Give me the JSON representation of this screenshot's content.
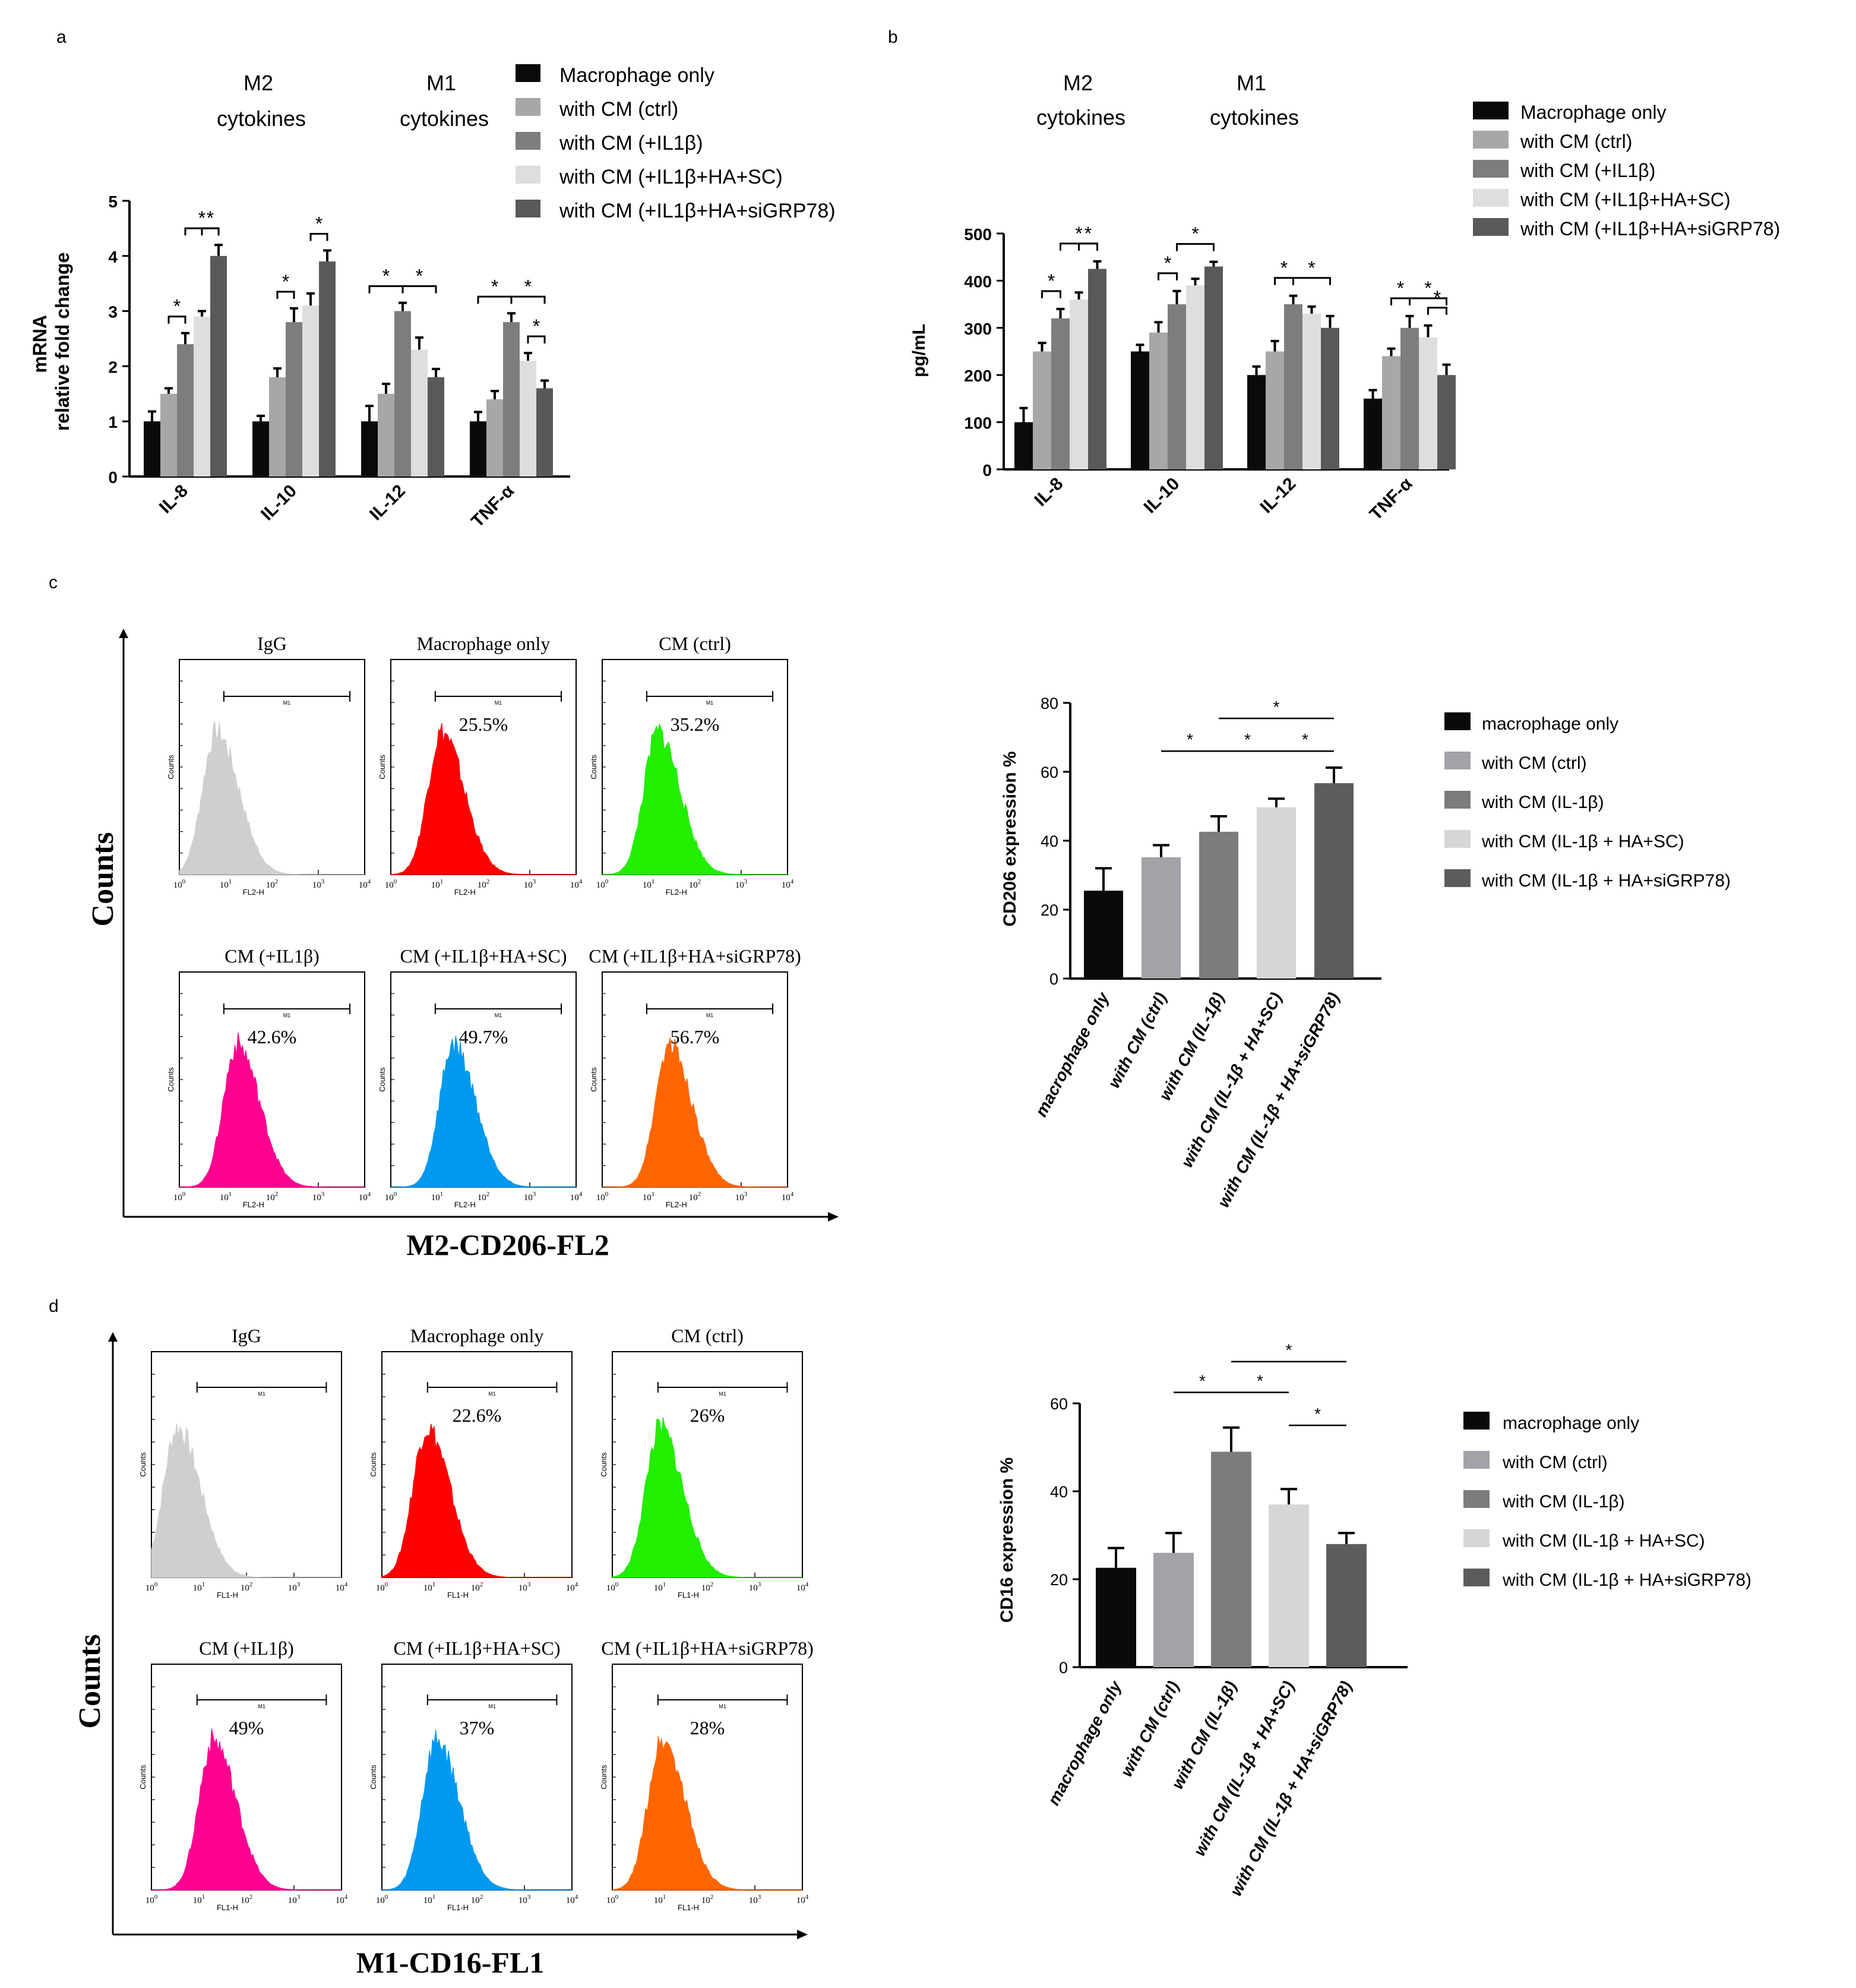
{
  "panels": {
    "a": {
      "letter": "a",
      "group_labels": [
        [
          "M2",
          "cytokines"
        ],
        [
          "M1",
          "cytokines"
        ]
      ],
      "ylabel": [
        "mRNA",
        "relative fold change"
      ],
      "legend": [
        "Macrophage only",
        "with CM (ctrl)",
        "with CM (+IL1β)",
        "with CM (+IL1β+HA+SC)",
        "with CM (+IL1β+HA+siGRP78)"
      ],
      "star": "*"
    },
    "b": {
      "letter": "b",
      "group_labels": [
        [
          "M2",
          "cytokines"
        ],
        [
          "M1",
          "cytokines"
        ]
      ],
      "ylabel": "pg/mL",
      "legend": [
        "Macrophage only",
        "with CM (ctrl)",
        "with CM (+IL1β)",
        "with CM (+IL1β+HA+SC)",
        "with CM (+IL1β+HA+siGRP78)"
      ],
      "star": "*"
    },
    "c": {
      "letter": "c",
      "yaxis": "Counts",
      "xaxis": "M2-CD206-FL2",
      "histograms": [
        {
          "title": "IgG",
          "value": "",
          "color": "#cfcfcf",
          "xlabel": "FL2-H",
          "ylabel": "Counts",
          "gate": "M1",
          "peak": 0.8
        },
        {
          "title": "Macrophage only",
          "value": "25.5%",
          "color": "#ff0000",
          "xlabel": "FL2-H",
          "ylabel": "Counts",
          "gate": "M1",
          "peak": 1.1
        },
        {
          "title": "CM (ctrl)",
          "value": "35.2%",
          "color": "#22ee00",
          "xlabel": "FL2-H",
          "ylabel": "Counts",
          "gate": "M1",
          "peak": 1.2
        },
        {
          "title": "CM (+IL1β)",
          "value": "42.6%",
          "color": "#ff0090",
          "xlabel": "FL2-H",
          "ylabel": "Counts",
          "gate": "M1",
          "peak": 1.25
        },
        {
          "title": "CM (+IL1β+HA+SC)",
          "value": "49.7%",
          "color": "#0099ee",
          "xlabel": "FL2-H",
          "ylabel": "Counts",
          "gate": "M1",
          "peak": 1.35
        },
        {
          "title": "CM (+IL1β+HA+siGRP78)",
          "value": "56.7%",
          "color": "#ff6600",
          "xlabel": "FL2-H",
          "ylabel": "Counts",
          "gate": "M1",
          "peak": 1.45
        }
      ],
      "bar_ylabel": "CD206 expression %",
      "legend": [
        "macrophage only",
        "with CM (ctrl)",
        "with CM (IL-1β)",
        "with CM (IL-1β + HA+SC)",
        "with CM (IL-1β + HA+siGRP78)"
      ],
      "categories": [
        "macrophage only",
        "with CM (ctrl)",
        "with CM (IL-1β)",
        "with CM (IL-1β + HA+SC)",
        "with CM (IL-1β + HA+siGRP78)"
      ],
      "star": "*"
    },
    "d": {
      "letter": "d",
      "yaxis": "Counts",
      "xaxis": "M1-CD16-FL1",
      "histograms": [
        {
          "title": "IgG",
          "value": "",
          "color": "#cfcfcf",
          "xlabel": "FL1-H",
          "ylabel": "Counts",
          "gate": "M1",
          "peak": 0.55
        },
        {
          "title": "Macrophage only",
          "value": "22.6%",
          "color": "#ff0000",
          "xlabel": "FL1-H",
          "ylabel": "Counts",
          "gate": "M1",
          "peak": 0.95
        },
        {
          "title": "CM (ctrl)",
          "value": "26%",
          "color": "#22ee00",
          "xlabel": "FL1-H",
          "ylabel": "Counts",
          "gate": "M1",
          "peak": 1.0
        },
        {
          "title": "CM (+IL1β)",
          "value": "49%",
          "color": "#ff0090",
          "xlabel": "FL1-H",
          "ylabel": "Counts",
          "gate": "M1",
          "peak": 1.3
        },
        {
          "title": "CM (+IL1β+HA+SC)",
          "value": "37%",
          "color": "#0099ee",
          "xlabel": "FL1-H",
          "ylabel": "Counts",
          "gate": "M1",
          "peak": 1.15
        },
        {
          "title": "CM (+IL1β+HA+siGRP78)",
          "value": "28%",
          "color": "#ff6600",
          "xlabel": "FL1-H",
          "ylabel": "Counts",
          "gate": "M1",
          "peak": 1.05
        }
      ],
      "bar_ylabel": "CD16 expression %",
      "legend": [
        "macrophage only",
        "with CM (ctrl)",
        "with CM (IL-1β)",
        "with CM (IL-1β + HA+SC)",
        "with CM (IL-1β + HA+siGRP78)"
      ],
      "categories": [
        "macrophage only",
        "with CM (ctrl)",
        "with CM (IL-1β)",
        "with CM (IL-1β + HA+SC)",
        "with CM (IL-1β + HA+siGRP78)"
      ],
      "star": "*"
    }
  },
  "colors": {
    "panel_ab": [
      "#0a0a0a",
      "#a7a7a7",
      "#7d7d7d",
      "#dedede",
      "#595959"
    ],
    "panel_cd": [
      "#0a0a0a",
      "#a2a2a8",
      "#7c7c7c",
      "#d6d6d6",
      "#5c5c5c"
    ]
  },
  "chart_data": [
    {
      "type": "bar",
      "panel": "a",
      "ylabel": "mRNA relative fold change",
      "categories": [
        "IL-8",
        "IL-10",
        "IL-12",
        "TNF-α"
      ],
      "yticks": [
        0,
        1,
        2,
        3,
        4,
        5
      ],
      "ylim": [
        0,
        5
      ],
      "series": [
        {
          "name": "Macrophage only",
          "values": [
            1.0,
            1.0,
            1.0,
            1.0
          ],
          "errors": [
            0.18,
            0.1,
            0.28,
            0.17
          ]
        },
        {
          "name": "with CM (ctrl)",
          "values": [
            1.5,
            1.8,
            1.5,
            1.4
          ],
          "errors": [
            0.1,
            0.16,
            0.18,
            0.15
          ]
        },
        {
          "name": "with CM (+IL1β)",
          "values": [
            2.4,
            2.8,
            3.0,
            2.8
          ],
          "errors": [
            0.2,
            0.25,
            0.15,
            0.16
          ]
        },
        {
          "name": "with CM (+IL1β+HA+SC)",
          "values": [
            2.9,
            3.1,
            2.3,
            2.1
          ],
          "errors": [
            0.1,
            0.22,
            0.22,
            0.14
          ]
        },
        {
          "name": "with CM (+IL1β+HA+siGRP78)",
          "values": [
            4.0,
            3.9,
            1.8,
            1.6
          ],
          "errors": [
            0.2,
            0.2,
            0.15,
            0.14
          ]
        }
      ],
      "significance": [
        [
          0,
          1,
          2
        ],
        [
          0,
          2,
          4
        ],
        [
          0,
          3,
          4
        ],
        [
          1,
          1,
          2
        ],
        [
          1,
          3,
          4
        ],
        [
          2,
          0,
          2
        ],
        [
          2,
          2,
          4
        ],
        [
          3,
          0,
          2
        ],
        [
          3,
          2,
          4
        ],
        [
          3,
          3,
          4
        ]
      ]
    },
    {
      "type": "bar",
      "panel": "b",
      "ylabel": "pg/mL",
      "categories": [
        "IL-8",
        "IL-10",
        "IL-12",
        "TNF-α"
      ],
      "yticks": [
        0,
        100,
        200,
        300,
        400,
        500
      ],
      "ylim": [
        0,
        500
      ],
      "series": [
        {
          "name": "Macrophage only",
          "values": [
            100,
            250,
            200,
            150
          ],
          "errors": [
            30,
            14,
            18,
            18
          ]
        },
        {
          "name": "with CM (ctrl)",
          "values": [
            250,
            290,
            250,
            240
          ],
          "errors": [
            18,
            22,
            22,
            16
          ]
        },
        {
          "name": "with CM (+IL1β)",
          "values": [
            320,
            350,
            350,
            300
          ],
          "errors": [
            20,
            28,
            18,
            25
          ]
        },
        {
          "name": "with CM (+IL1β+HA+SC)",
          "values": [
            360,
            390,
            330,
            280
          ],
          "errors": [
            15,
            14,
            15,
            25
          ]
        },
        {
          "name": "with CM (+IL1β+HA+siGRP78)",
          "values": [
            425,
            430,
            300,
            200
          ],
          "errors": [
            16,
            10,
            25,
            22
          ]
        }
      ],
      "significance": [
        [
          0,
          1,
          2
        ],
        [
          0,
          2,
          4
        ],
        [
          0,
          3,
          4
        ],
        [
          1,
          1,
          2
        ],
        [
          1,
          2,
          4
        ],
        [
          2,
          1,
          2
        ],
        [
          2,
          2,
          4
        ],
        [
          3,
          1,
          2
        ],
        [
          3,
          2,
          4
        ],
        [
          3,
          3,
          4
        ]
      ]
    },
    {
      "type": "bar",
      "panel": "c",
      "ylabel": "CD206 expression %",
      "categories": [
        "macrophage only",
        "with CM (ctrl)",
        "with CM (IL-1β)",
        "with CM (IL-1β + HA+SC)",
        "with CM (IL-1β + HA+siGRP78)"
      ],
      "values": [
        25.5,
        35.2,
        42.6,
        49.7,
        56.7
      ],
      "errors": [
        6.5,
        3.5,
        4.5,
        2.5,
        4.5
      ],
      "yticks": [
        0,
        20,
        40,
        60,
        80
      ],
      "ylim": [
        0,
        80
      ],
      "significance": [
        [
          1,
          2
        ],
        [
          2,
          3
        ],
        [
          3,
          4
        ],
        [
          2,
          4
        ]
      ]
    },
    {
      "type": "bar",
      "panel": "d",
      "ylabel": "CD16 expression %",
      "categories": [
        "macrophage only",
        "with CM (ctrl)",
        "with CM (IL-1β)",
        "with CM (IL-1β + HA+SC)",
        "with CM (IL-1β + HA+siGRP78)"
      ],
      "values": [
        22.6,
        26,
        49,
        37,
        28
      ],
      "errors": [
        4.5,
        4.5,
        5.5,
        3.5,
        2.5
      ],
      "yticks": [
        0,
        20,
        40,
        60
      ],
      "ylim": [
        0,
        60
      ],
      "significance": [
        [
          1,
          2
        ],
        [
          2,
          3
        ],
        [
          3,
          4
        ],
        [
          2,
          4
        ]
      ]
    }
  ]
}
